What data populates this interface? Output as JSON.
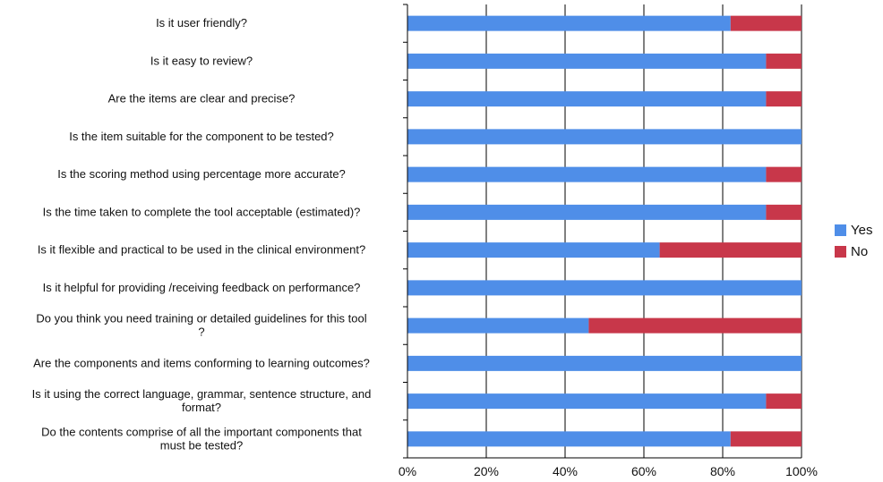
{
  "chart_data": {
    "type": "bar",
    "orientation": "horizontal",
    "stacked": true,
    "categories": [
      "Is it user friendly?",
      "Is it easy to review?",
      "Are the items are clear and precise?",
      "Is the item suitable for the component to be tested?",
      "Is the scoring method using percentage more accurate?",
      "Is the time taken to complete the tool acceptable (estimated)?",
      "Is it flexible and practical to be used in the clinical environment?",
      "Is it helpful for providing /receiving feedback on performance?",
      "Do you think you need training or detailed guidelines for this tool ?",
      "Are the components and items conforming to learning outcomes?",
      "Is it using the correct language, grammar, sentence structure, and format?",
      "Do the contents comprise of all the important components that must be tested?"
    ],
    "category_lines": [
      [
        "Is it user friendly?"
      ],
      [
        "Is it easy to review?"
      ],
      [
        "Are the items are clear and precise?"
      ],
      [
        "Is the item suitable for the component to be tested?"
      ],
      [
        "Is the scoring method using percentage more accurate?"
      ],
      [
        "Is the time taken to complete the tool acceptable (estimated)?"
      ],
      [
        "Is it flexible and practical to be used in the clinical environment?"
      ],
      [
        "Is it helpful for providing /receiving feedback on performance?"
      ],
      [
        "Do you think you need training or detailed guidelines for this tool",
        "?"
      ],
      [
        "Are the components and items conforming to learning outcomes?"
      ],
      [
        "Is it using the correct language, grammar, sentence structure, and",
        "format?"
      ],
      [
        "Do the contents comprise of all the important components that",
        "must be tested?"
      ]
    ],
    "series": [
      {
        "name": "Yes",
        "color": "#4f8ee8",
        "values": [
          82,
          91,
          91,
          100,
          91,
          91,
          64,
          100,
          46,
          100,
          91,
          82
        ]
      },
      {
        "name": "No",
        "color": "#c8374a",
        "values": [
          18,
          9,
          9,
          0,
          9,
          9,
          36,
          0,
          54,
          0,
          9,
          18
        ]
      }
    ],
    "x_ticks": [
      "0%",
      "20%",
      "40%",
      "60%",
      "80%",
      "100%"
    ],
    "xlim": [
      0,
      100
    ],
    "grid": true,
    "legend_position": "right",
    "title": "",
    "xlabel": "",
    "ylabel": ""
  }
}
